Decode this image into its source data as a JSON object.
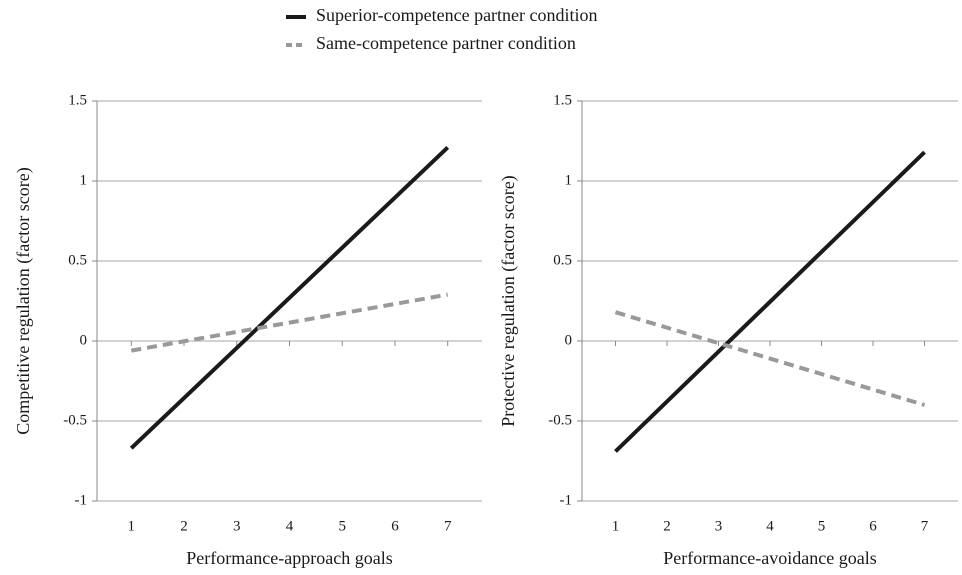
{
  "legend": {
    "position": "top"
  },
  "chart_data": [
    {
      "type": "line",
      "xlabel": "Performance-approach goals",
      "ylabel": "Competitive regulation (factor score)",
      "x": [
        1,
        7
      ],
      "xlim": [
        0.35,
        7.65
      ],
      "xticks": [
        1,
        2,
        3,
        4,
        5,
        6,
        7
      ],
      "ylim": [
        -1,
        1.5
      ],
      "yticks": [
        -1,
        -0.5,
        0,
        0.5,
        1,
        1.5
      ],
      "grid": true,
      "series": [
        {
          "name": "Superior-competence partner condition",
          "color": "#1a1a1a",
          "dash": false,
          "values": [
            -0.67,
            1.21
          ]
        },
        {
          "name": "Same-competence partner condition",
          "color": "#999999",
          "dash": true,
          "values": [
            -0.06,
            0.29
          ]
        }
      ]
    },
    {
      "type": "line",
      "xlabel": "Performance-avoidance goals",
      "ylabel": "Protective regulation (factor score)",
      "x": [
        1,
        7
      ],
      "xlim": [
        0.35,
        7.65
      ],
      "xticks": [
        1,
        2,
        3,
        4,
        5,
        6,
        7
      ],
      "ylim": [
        -1,
        1.5
      ],
      "yticks": [
        -1,
        -0.5,
        0,
        0.5,
        1,
        1.5
      ],
      "grid": true,
      "series": [
        {
          "color": "#1a1a1a",
          "dash": false,
          "values": [
            -0.69,
            1.18
          ]
        },
        {
          "color": "#999999",
          "dash": true,
          "values": [
            0.18,
            -0.4
          ]
        }
      ]
    }
  ]
}
